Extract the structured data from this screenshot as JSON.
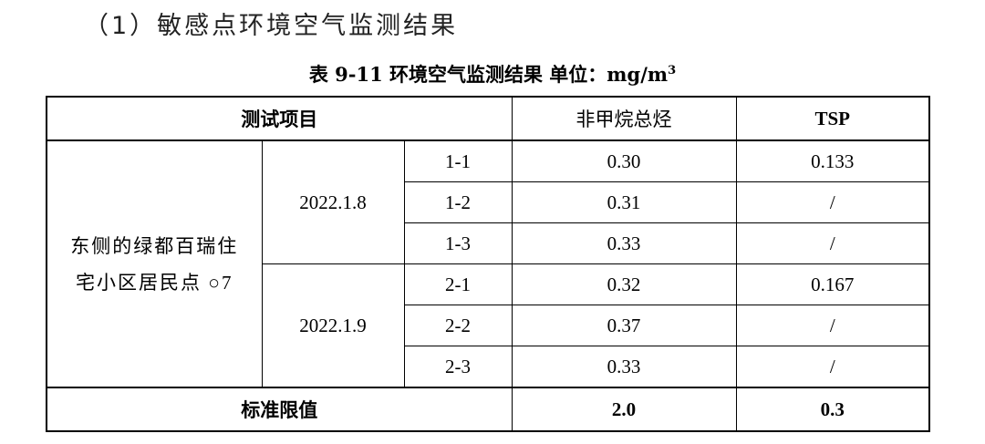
{
  "section_heading": "（1）敏感点环境空气监测结果",
  "caption": {
    "text": "表 9-11 环境空气监测结果 单位：mg/m",
    "superscript": "3"
  },
  "table": {
    "headers": {
      "item": "测试项目",
      "nmhc": "非甲烷总烃",
      "tsp": "TSP"
    },
    "site_line1": "东侧的绿都百瑞住",
    "site_line2": "宅小区居民点 ○7",
    "days": [
      {
        "date": "2022.1.8",
        "rows": [
          {
            "id": "1-1",
            "nmhc": "0.30",
            "tsp": "0.133"
          },
          {
            "id": "1-2",
            "nmhc": "0.31",
            "tsp": "/"
          },
          {
            "id": "1-3",
            "nmhc": "0.33",
            "tsp": "/"
          }
        ]
      },
      {
        "date": "2022.1.9",
        "rows": [
          {
            "id": "2-1",
            "nmhc": "0.32",
            "tsp": "0.167"
          },
          {
            "id": "2-2",
            "nmhc": "0.37",
            "tsp": "/"
          },
          {
            "id": "2-3",
            "nmhc": "0.33",
            "tsp": "/"
          }
        ]
      }
    ],
    "limit": {
      "label": "标准限值",
      "nmhc": "2.0",
      "tsp": "0.3"
    }
  }
}
